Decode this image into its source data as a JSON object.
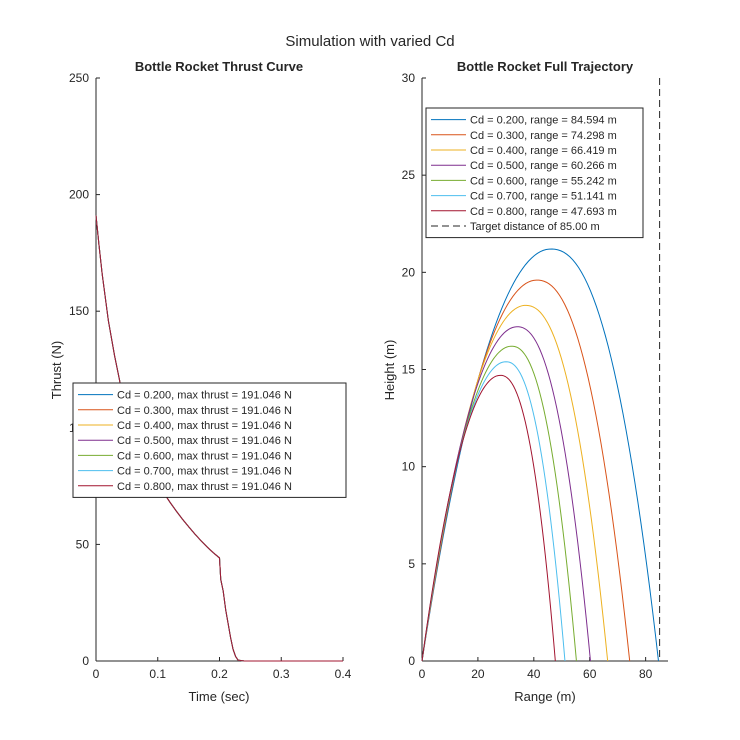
{
  "figure": {
    "title": "Simulation with varied Cd"
  },
  "colors": [
    "#0072BD",
    "#D95319",
    "#EDB120",
    "#7E2F8E",
    "#77AC30",
    "#4DBEEE",
    "#A2142F"
  ],
  "chart_data": [
    {
      "type": "line",
      "title": "Bottle Rocket Thrust Curve",
      "xlabel": "Time (sec)",
      "ylabel": "Thrust (N)",
      "xlim": [
        0,
        0.4
      ],
      "ylim": [
        0,
        250
      ],
      "xticks": [
        0,
        0.1,
        0.2,
        0.3,
        0.4
      ],
      "xtick_labels": [
        "0",
        "0.1",
        "0.2",
        "0.3",
        "0.4"
      ],
      "yticks": [
        0,
        50,
        100,
        150,
        200,
        250
      ],
      "ytick_labels": [
        "0",
        "50",
        "100",
        "150",
        "200",
        "250"
      ],
      "grid": false,
      "legend_position": "middle-left",
      "series": [
        {
          "name": "Cd = 0.200, max thrust = 191.046 N"
        },
        {
          "name": "Cd = 0.300, max thrust = 191.046 N"
        },
        {
          "name": "Cd = 0.400, max thrust = 191.046 N"
        },
        {
          "name": "Cd = 0.500, max thrust = 191.046 N"
        },
        {
          "name": "Cd = 0.600, max thrust = 191.046 N"
        },
        {
          "name": "Cd = 0.700, max thrust = 191.046 N"
        },
        {
          "name": "Cd = 0.800, max thrust = 191.046 N"
        }
      ],
      "thrust_points": [
        [
          0.0,
          191.0
        ],
        [
          0.005,
          178.0
        ],
        [
          0.01,
          166.0
        ],
        [
          0.02,
          146.0
        ],
        [
          0.03,
          131.0
        ],
        [
          0.04,
          118.0
        ],
        [
          0.05,
          108.0
        ],
        [
          0.06,
          100.0
        ],
        [
          0.07,
          93.0
        ],
        [
          0.08,
          87.0
        ],
        [
          0.09,
          81.5
        ],
        [
          0.1,
          76.5
        ],
        [
          0.11,
          72.0
        ],
        [
          0.12,
          68.0
        ],
        [
          0.13,
          64.3
        ],
        [
          0.14,
          60.8
        ],
        [
          0.15,
          57.6
        ],
        [
          0.16,
          54.5
        ],
        [
          0.17,
          51.6
        ],
        [
          0.18,
          48.9
        ],
        [
          0.19,
          46.4
        ],
        [
          0.2,
          44.2
        ],
        [
          0.202,
          35.0
        ],
        [
          0.206,
          30.0
        ],
        [
          0.21,
          22.0
        ],
        [
          0.214,
          16.0
        ],
        [
          0.218,
          10.0
        ],
        [
          0.222,
          5.0
        ],
        [
          0.226,
          2.0
        ],
        [
          0.23,
          0.4
        ],
        [
          0.24,
          0.0
        ],
        [
          0.4,
          0.0
        ]
      ]
    },
    {
      "type": "line",
      "title": "Bottle Rocket Full Trajectory",
      "xlabel": "Range (m)",
      "ylabel": "Height (m)",
      "xlim": [
        0,
        88
      ],
      "ylim": [
        0,
        30
      ],
      "xticks": [
        0,
        20,
        40,
        60,
        80
      ],
      "xtick_labels": [
        "0",
        "20",
        "40",
        "60",
        "80"
      ],
      "yticks": [
        0,
        5,
        10,
        15,
        20,
        25,
        30
      ],
      "ytick_labels": [
        "0",
        "5",
        "10",
        "15",
        "20",
        "25",
        "30"
      ],
      "grid": false,
      "legend_position": "top-left",
      "series": [
        {
          "name": "Cd = 0.200, range = 84.594 m",
          "range": 84.594,
          "apex_x": 46.0,
          "apex_y": 21.2
        },
        {
          "name": "Cd = 0.300, range = 74.298 m",
          "range": 74.298,
          "apex_x": 41.0,
          "apex_y": 19.6
        },
        {
          "name": "Cd = 0.400, range = 66.419 m",
          "range": 66.419,
          "apex_x": 37.0,
          "apex_y": 18.3
        },
        {
          "name": "Cd = 0.500, range = 60.266 m",
          "range": 60.266,
          "apex_x": 34.0,
          "apex_y": 17.2
        },
        {
          "name": "Cd = 0.600, range = 55.242 m",
          "range": 55.242,
          "apex_x": 32.0,
          "apex_y": 16.2
        },
        {
          "name": "Cd = 0.700, range = 51.141 m",
          "range": 51.141,
          "apex_x": 30.0,
          "apex_y": 15.4
        },
        {
          "name": "Cd = 0.800, range = 47.693 m",
          "range": 47.693,
          "apex_x": 28.0,
          "apex_y": 14.7
        }
      ],
      "target": {
        "name": "Target distance of 85.00 m",
        "x": 85.0
      }
    }
  ]
}
